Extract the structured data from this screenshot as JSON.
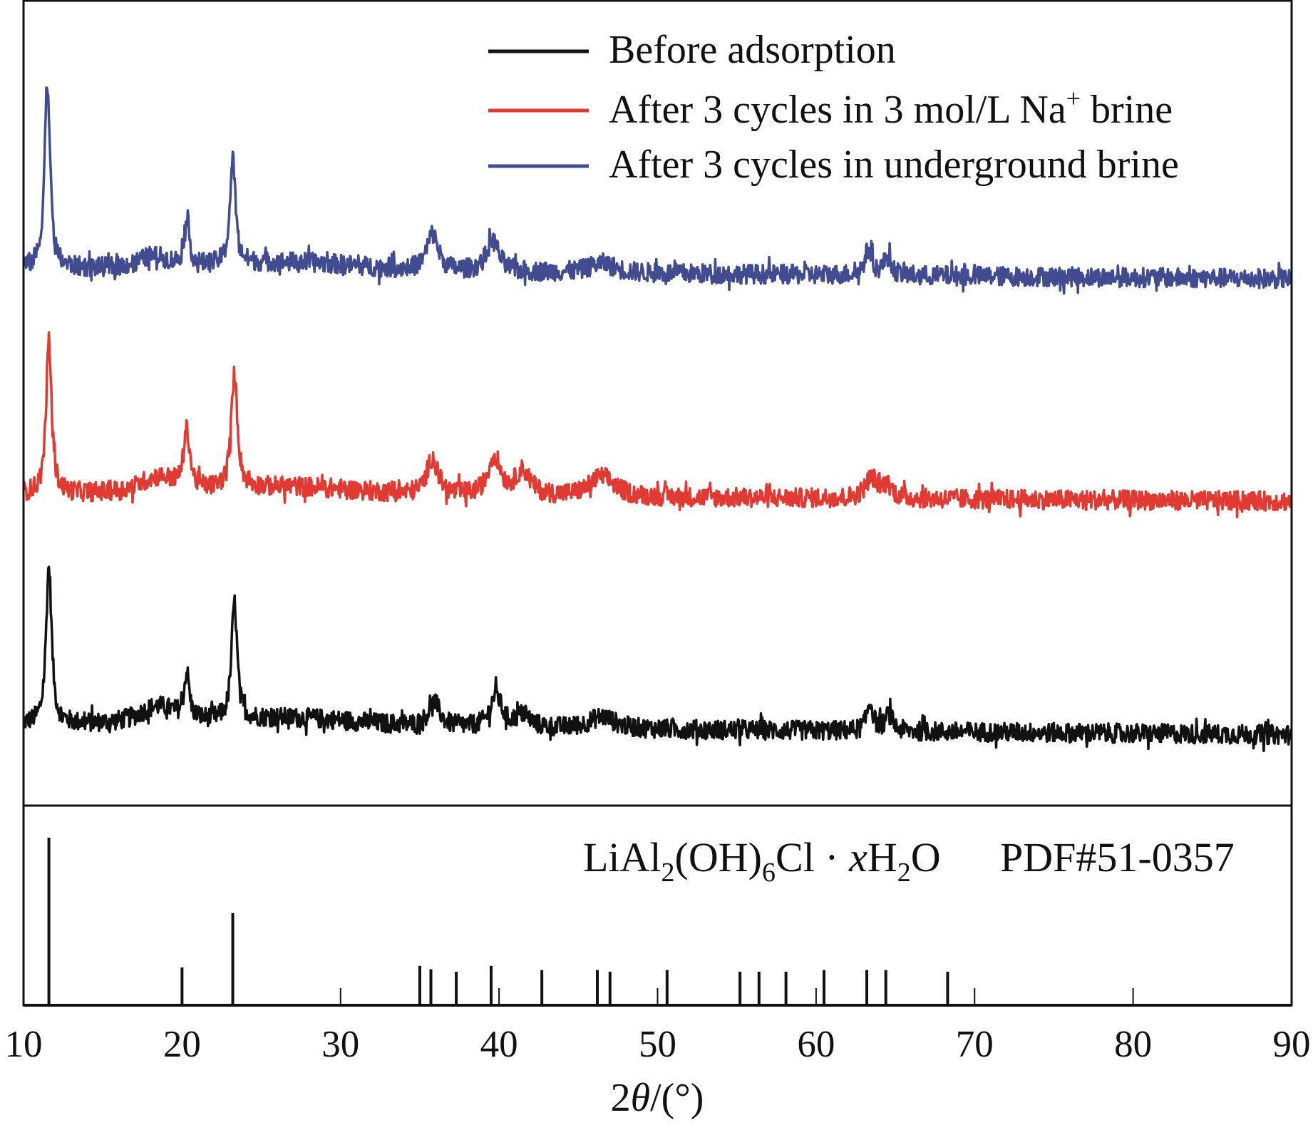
{
  "chart_data": {
    "type": "line",
    "xlabel_parts": [
      "2",
      "θ",
      "/(°)"
    ],
    "xlim": [
      10,
      90
    ],
    "x_ticks": [
      "10",
      "20",
      "30",
      "40",
      "50",
      "60",
      "70",
      "80",
      "90"
    ],
    "y_ticks_shown": false,
    "grid": false,
    "legend_placement": "top-right",
    "legend": [
      {
        "parts": [
          "Before adsorption"
        ],
        "color": "#111111"
      },
      {
        "parts": [
          "After 3 cycles in 3 mol/L Na",
          "+",
          " brine"
        ],
        "color": "#e03a33"
      },
      {
        "parts": [
          "After 3 cycles in underground brine"
        ],
        "color": "#414b8f"
      }
    ],
    "series": [
      {
        "color": "#111111",
        "baseline": [
          101,
          88
        ],
        "noise": 12,
        "peaks": [
          [
            11.6,
            195,
            0.22
          ],
          [
            20.3,
            55,
            0.2
          ],
          [
            23.3,
            145,
            0.22
          ],
          [
            18.5,
            22,
            1.5
          ],
          [
            35.9,
            30,
            0.45
          ],
          [
            39.8,
            40,
            0.45
          ],
          [
            41.5,
            15,
            0.6
          ],
          [
            46.5,
            15,
            1.0
          ],
          [
            63.4,
            35,
            0.25
          ],
          [
            64.6,
            20,
            0.3
          ]
        ]
      },
      {
        "color": "#e03a33",
        "baseline": [
          387,
          378
        ],
        "noise": 12,
        "peaks": [
          [
            11.6,
            187,
            0.22
          ],
          [
            20.3,
            70,
            0.25
          ],
          [
            23.3,
            140,
            0.25
          ],
          [
            18.5,
            20,
            1.5
          ],
          [
            35.8,
            45,
            0.45
          ],
          [
            39.7,
            48,
            0.5
          ],
          [
            41.5,
            30,
            0.6
          ],
          [
            46.5,
            25,
            1.0
          ],
          [
            63.5,
            25,
            0.5
          ],
          [
            64.5,
            15,
            0.4
          ]
        ]
      },
      {
        "color": "#414b8f",
        "baseline": [
          667,
          654
        ],
        "noise": 12,
        "peaks": [
          [
            11.5,
            231,
            0.22
          ],
          [
            20.3,
            60,
            0.2
          ],
          [
            23.2,
            130,
            0.22
          ],
          [
            18.2,
            15,
            1.2
          ],
          [
            35.8,
            45,
            0.45
          ],
          [
            39.6,
            38,
            0.5
          ],
          [
            46.5,
            12,
            1.0
          ],
          [
            63.3,
            30,
            0.3
          ],
          [
            64.5,
            22,
            0.3
          ]
        ]
      }
    ],
    "reference": {
      "label_parts": [
        "LiAl",
        "2",
        "(OH)",
        "6",
        "Cl · ",
        "x",
        "H",
        "2",
        "O"
      ],
      "pdf_label": "PDF#51-0357",
      "sticks": [
        [
          11.6,
          100
        ],
        [
          20.0,
          22.5
        ],
        [
          23.2,
          55
        ],
        [
          35.0,
          23.5
        ],
        [
          35.7,
          21.5
        ],
        [
          37.3,
          20
        ],
        [
          39.5,
          23.5
        ],
        [
          42.7,
          21
        ],
        [
          46.2,
          21
        ],
        [
          47.0,
          20
        ],
        [
          50.6,
          21
        ],
        [
          55.2,
          20
        ],
        [
          56.4,
          20
        ],
        [
          58.1,
          20
        ],
        [
          60.5,
          21
        ],
        [
          63.2,
          21
        ],
        [
          64.4,
          21
        ],
        [
          68.3,
          20
        ]
      ]
    }
  }
}
